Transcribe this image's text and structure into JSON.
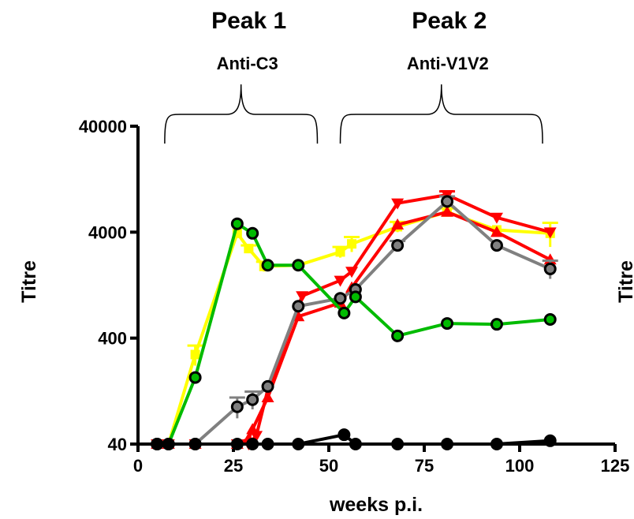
{
  "chart_data": {
    "type": "line",
    "xlabel": "weeks p.i.",
    "ylabel": "Titre",
    "ylabel_right": "Titre",
    "xlim": [
      0,
      125
    ],
    "ylim": [
      40,
      40000
    ],
    "y_scale": "log",
    "x_ticks": [
      0,
      25,
      50,
      75,
      100,
      125
    ],
    "y_ticks": [
      40,
      400,
      4000,
      40000
    ],
    "x_tick_labels": [
      "0",
      "25",
      "50",
      "75",
      "100",
      "125"
    ],
    "y_tick_labels": [
      "40",
      "400",
      "4000",
      "40000"
    ],
    "grid": false,
    "legend": "none",
    "annotations": [
      {
        "title": "Peak 1",
        "subtitle": "Anti-C3",
        "x_range": [
          7,
          47
        ]
      },
      {
        "title": "Peak 2",
        "subtitle": "Anti-V1V2",
        "x_range": [
          53,
          106
        ]
      }
    ],
    "series": [
      {
        "color": "#ffff00",
        "marker": "square",
        "x": [
          5,
          8,
          15,
          26,
          29,
          33,
          42,
          53,
          56,
          68,
          81,
          94,
          108
        ],
        "y": [
          40,
          40,
          280,
          3900,
          2800,
          1900,
          1950,
          2600,
          3100,
          4500,
          6200,
          4200,
          3900
        ],
        "err": [
          0,
          0,
          60,
          0,
          200,
          200,
          0,
          300,
          500,
          500,
          500,
          0,
          1000
        ]
      },
      {
        "color": "#ff0000",
        "marker": "triangle-up",
        "x": [
          5,
          8,
          15,
          26,
          29,
          30,
          34,
          42,
          53,
          56,
          68,
          81,
          94,
          108
        ],
        "y": [
          40,
          40,
          40,
          40,
          45,
          55,
          110,
          640,
          860,
          1200,
          4700,
          6200,
          4000,
          2200
        ],
        "err": [
          0,
          0,
          0,
          0,
          0,
          0,
          0,
          0,
          0,
          0,
          0,
          0,
          0,
          0
        ]
      },
      {
        "color": "#ff0000",
        "marker": "triangle-down",
        "x": [
          5,
          8,
          15,
          26,
          29,
          31,
          34,
          43,
          53,
          56,
          68,
          81,
          94,
          108
        ],
        "y": [
          40,
          40,
          40,
          40,
          40,
          48,
          130,
          1000,
          1400,
          1700,
          7500,
          9000,
          5500,
          4000
        ],
        "err": [
          0,
          0,
          0,
          0,
          0,
          0,
          0,
          0,
          0,
          0,
          0,
          700,
          0,
          0
        ]
      },
      {
        "color": "#808080",
        "marker": "circle",
        "x": [
          5,
          8,
          15,
          26,
          30,
          34,
          42,
          53,
          57,
          68,
          81,
          94,
          108
        ],
        "y": [
          40,
          40,
          40,
          90,
          105,
          140,
          800,
          950,
          1150,
          3000,
          7800,
          3000,
          1800
        ],
        "err": [
          0,
          0,
          0,
          20,
          20,
          0,
          0,
          0,
          0,
          300,
          900,
          0,
          350
        ]
      },
      {
        "color": "#00bb00",
        "marker": "circle",
        "x": [
          5,
          8,
          15,
          26,
          30,
          34,
          42,
          54,
          57,
          68,
          81,
          94,
          108
        ],
        "y": [
          40,
          40,
          170,
          4800,
          3900,
          1950,
          1950,
          690,
          980,
          420,
          550,
          540,
          600
        ],
        "err": [
          0,
          0,
          0,
          0,
          0,
          0,
          0,
          0,
          0,
          0,
          0,
          0,
          0
        ]
      },
      {
        "color": "#000000",
        "marker": "circle",
        "x": [
          5,
          8,
          15,
          26,
          30,
          34,
          42,
          54,
          57,
          68,
          81,
          94,
          108
        ],
        "y": [
          40,
          40,
          40,
          40,
          40,
          40,
          40,
          49,
          40,
          40,
          40,
          40,
          43
        ],
        "err": [
          0,
          0,
          0,
          0,
          0,
          0,
          0,
          0,
          0,
          0,
          0,
          0,
          0
        ]
      }
    ]
  }
}
